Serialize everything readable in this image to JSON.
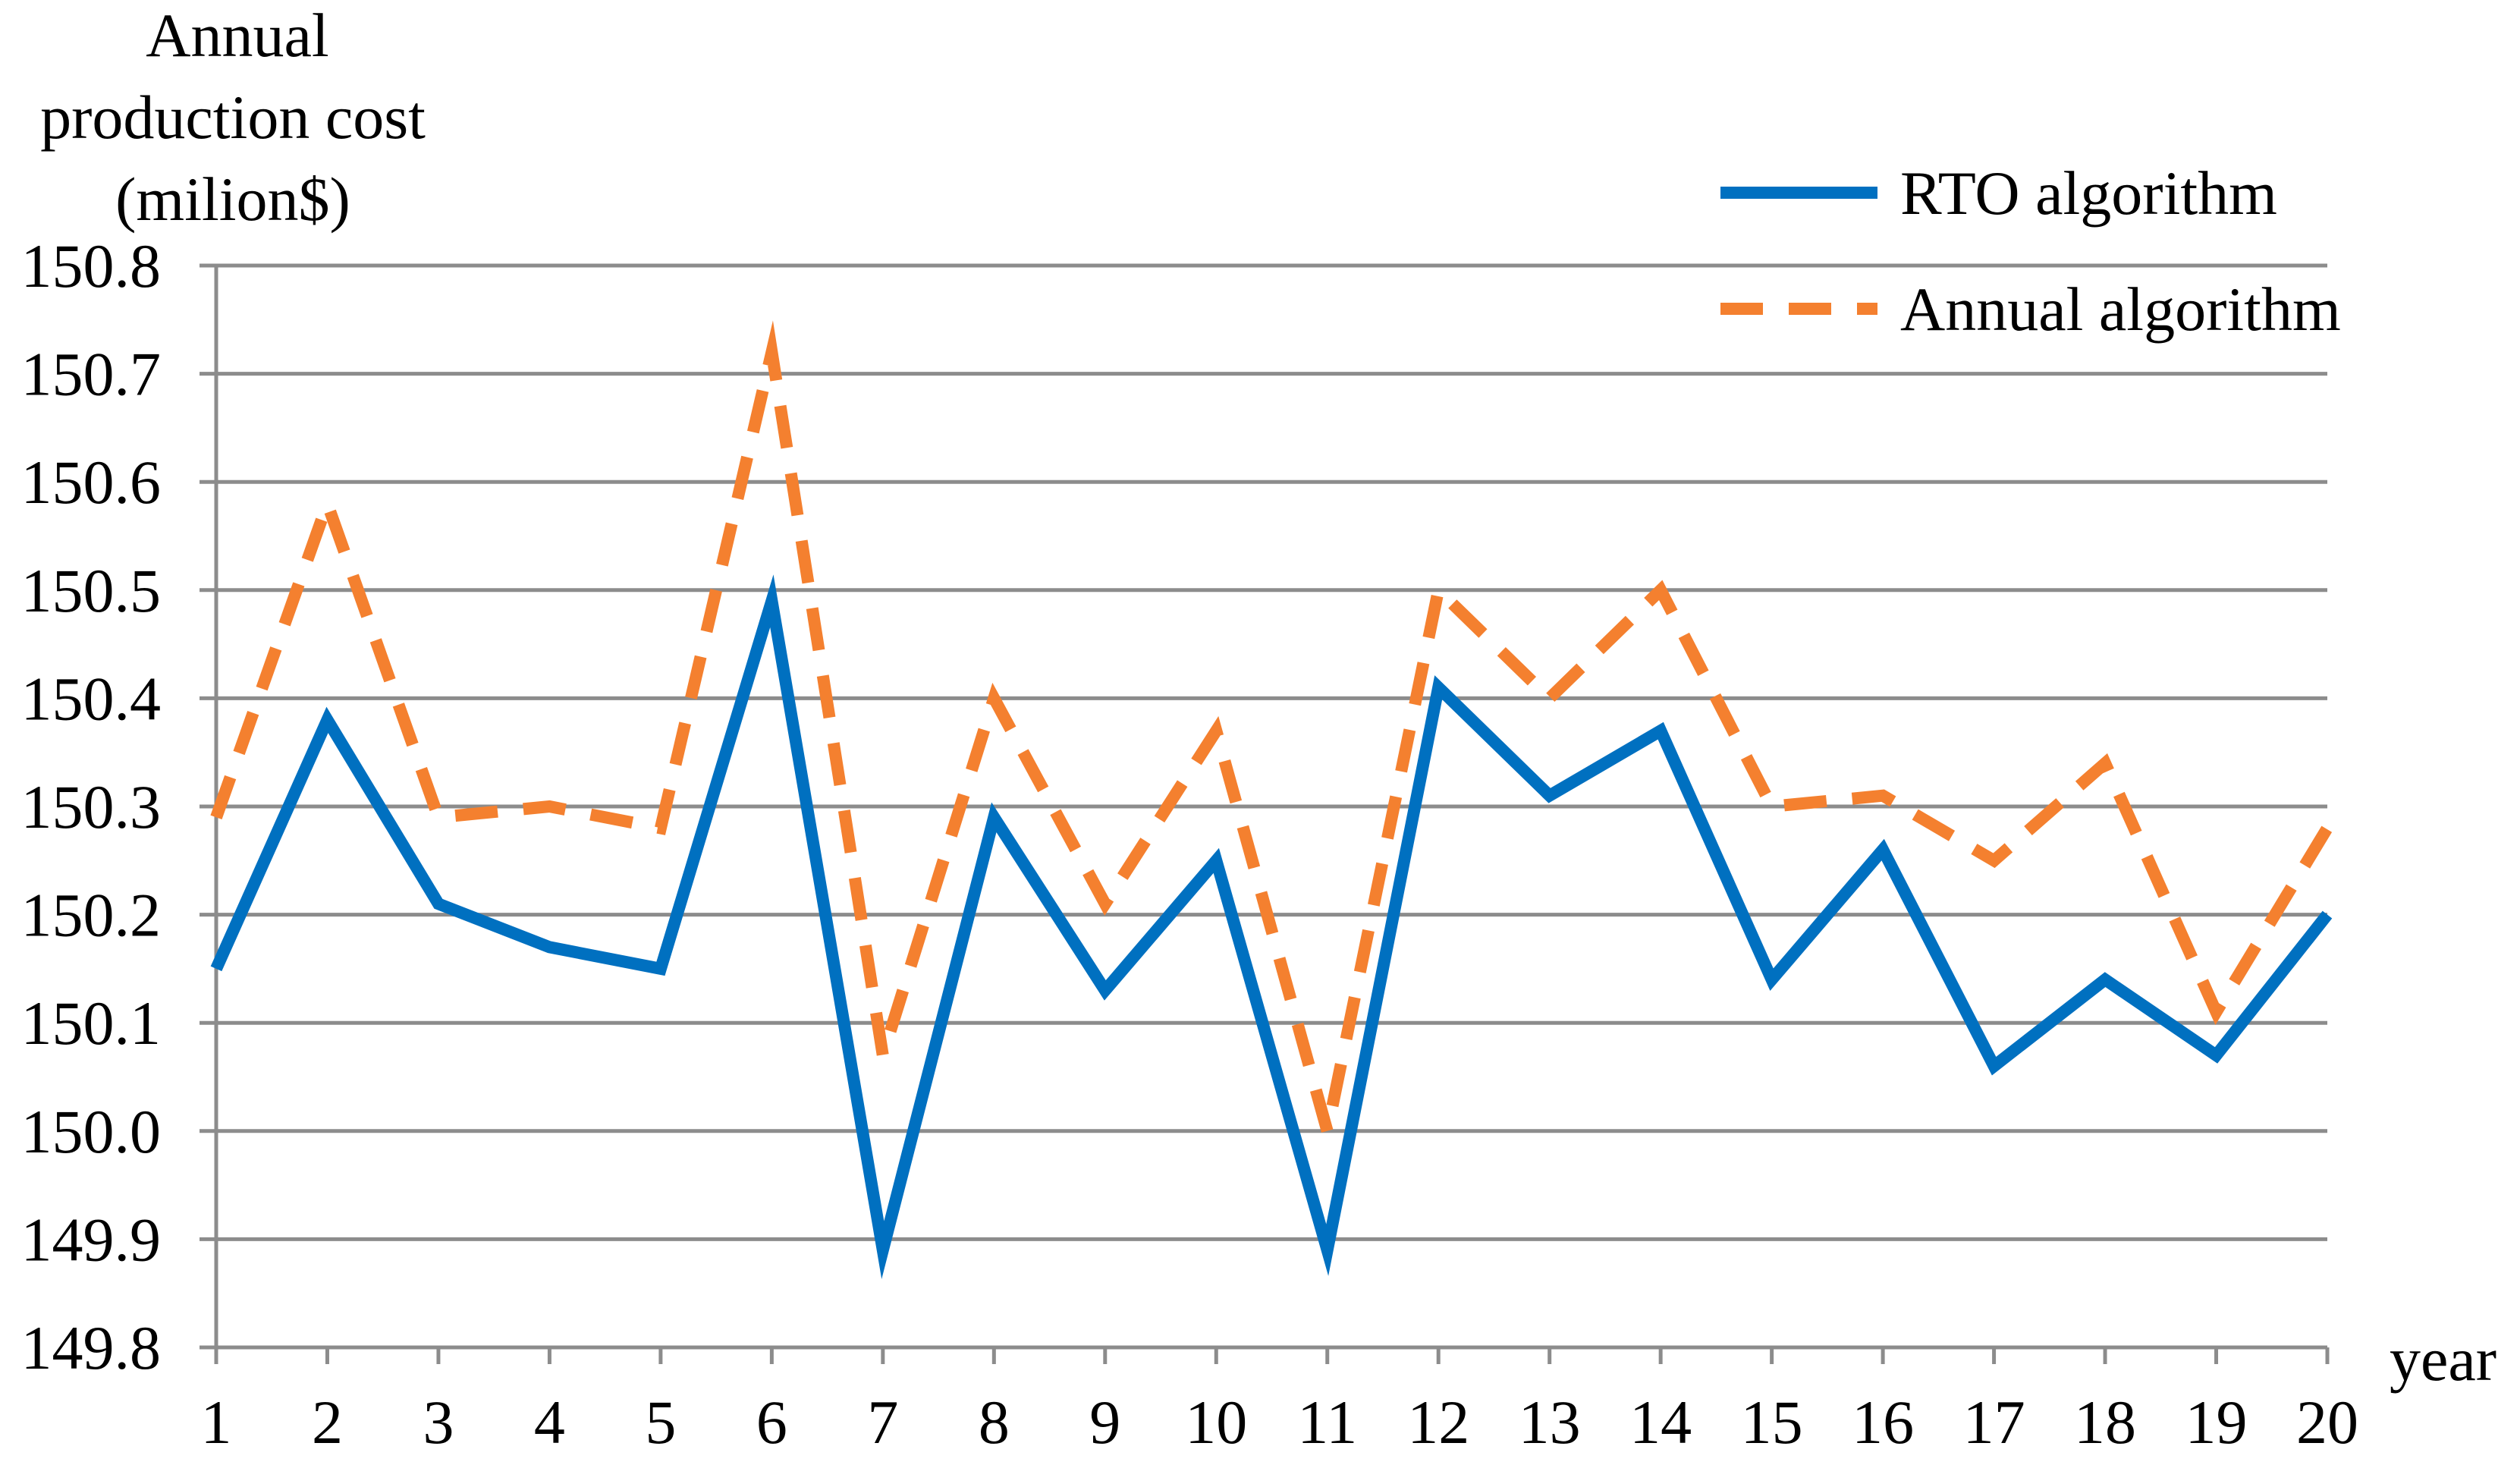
{
  "chart_data": {
    "type": "line",
    "title": "",
    "ylabel_lines": [
      "Annual",
      "production cost",
      "(milion$)"
    ],
    "xlabel": "year",
    "x": [
      1,
      2,
      3,
      4,
      5,
      6,
      7,
      8,
      9,
      10,
      11,
      12,
      13,
      14,
      15,
      16,
      17,
      18,
      19,
      20
    ],
    "ylim": [
      149.8,
      150.8
    ],
    "ytick_labels": [
      "149.8",
      "149.9",
      "150.0",
      "150.1",
      "150.2",
      "150.3",
      "150.4",
      "150.5",
      "150.6",
      "150.7",
      "150.8"
    ],
    "grid": true,
    "legend_position": "top-right",
    "series": [
      {
        "name": "RTO algorithm",
        "color": "#0070C0",
        "style": "solid",
        "values": [
          150.15,
          150.38,
          150.21,
          150.17,
          150.15,
          150.49,
          149.89,
          150.29,
          150.13,
          150.25,
          149.89,
          150.41,
          150.31,
          150.37,
          150.14,
          150.26,
          150.06,
          150.14,
          150.07,
          150.2
        ]
      },
      {
        "name": "Annual algorithm",
        "color": "#F4802F",
        "style": "dashed",
        "values": [
          150.29,
          150.58,
          150.29,
          150.3,
          150.28,
          150.72,
          150.07,
          150.4,
          150.21,
          150.37,
          150.0,
          150.5,
          150.4,
          150.5,
          150.3,
          150.31,
          150.25,
          150.34,
          150.11,
          150.28
        ]
      }
    ]
  }
}
